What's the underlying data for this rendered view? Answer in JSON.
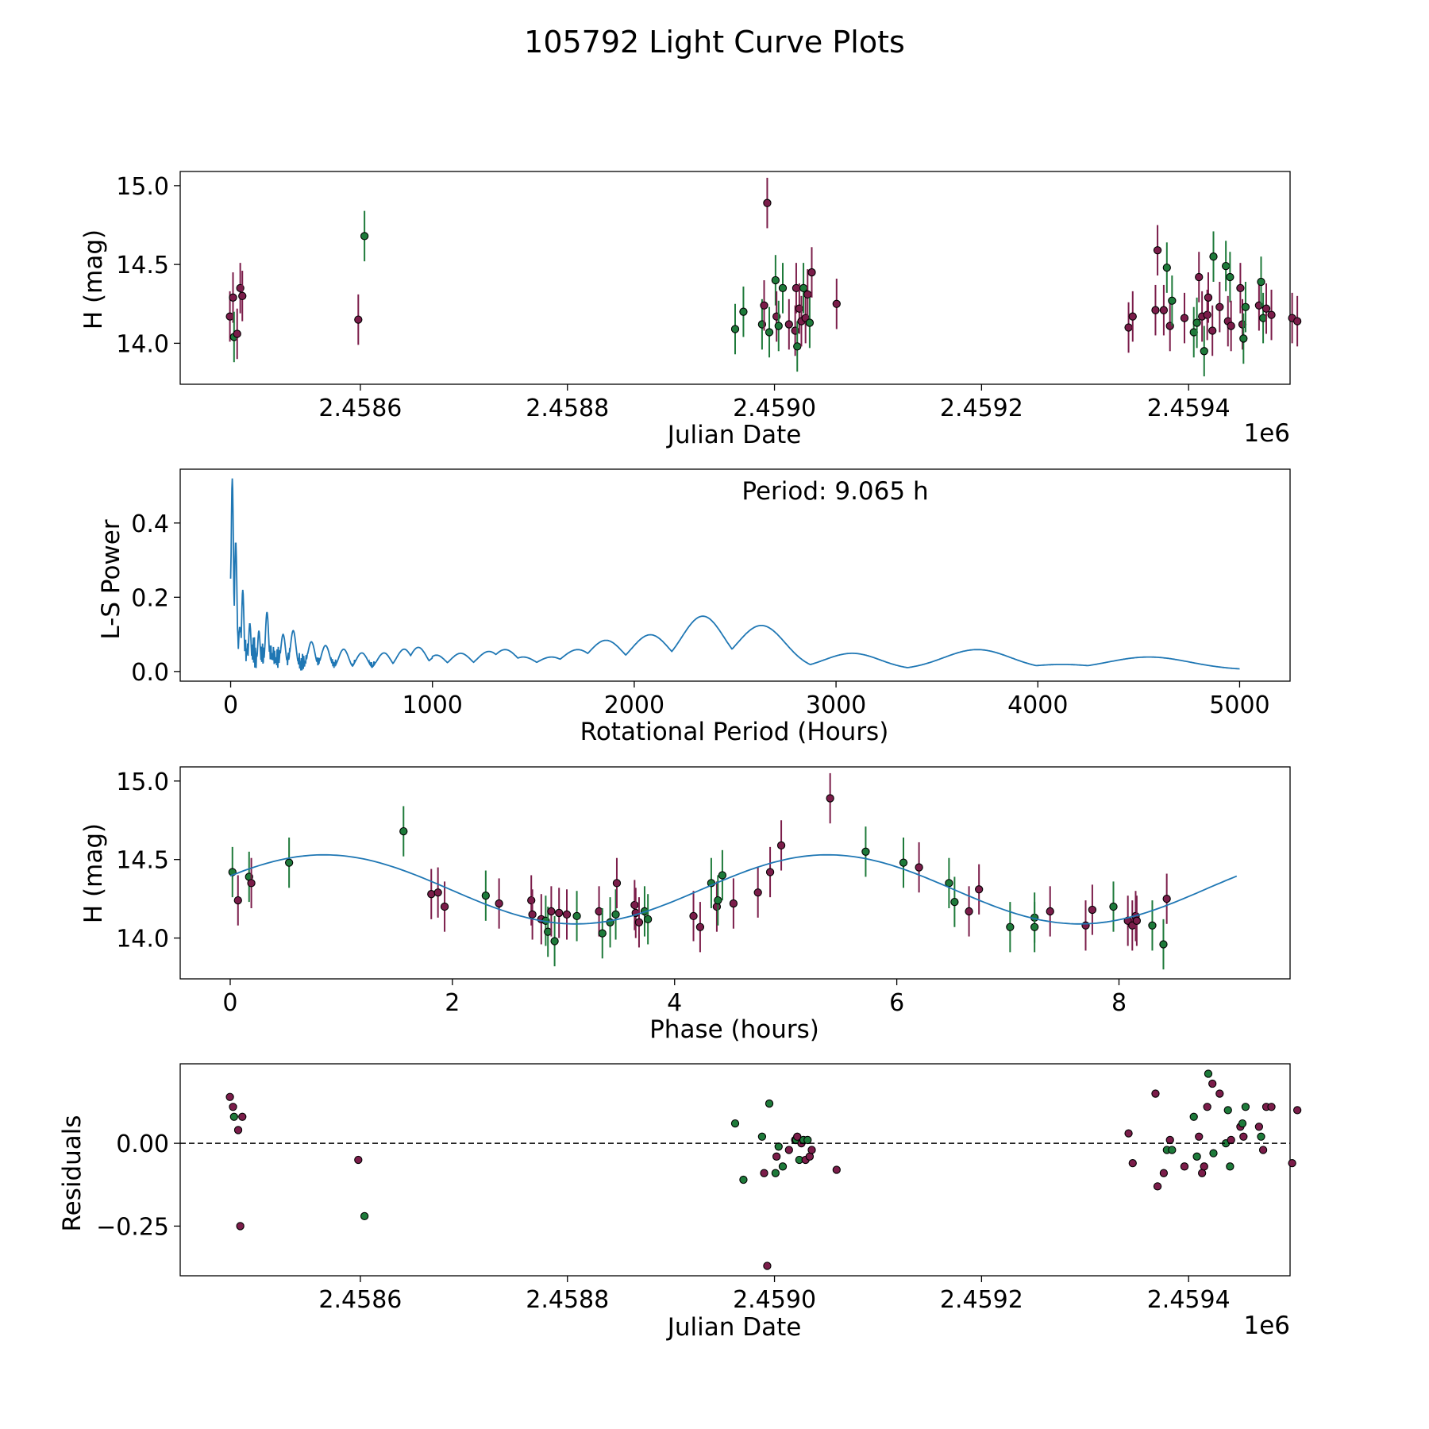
{
  "figure": {
    "title": "105792 Light Curve Plots"
  },
  "colors": {
    "red": "#7b1d4a",
    "green": "#1e7a3a",
    "line": "#1f77b4"
  },
  "chart_data": [
    {
      "type": "scatter",
      "name": "lightcurve",
      "xlabel": "Julian Date",
      "ylabel": "H (mag)",
      "offset_label": "1e6",
      "xlim": [
        2458426,
        2459498
      ],
      "ylim": [
        13.74,
        15.09
      ],
      "x_tick_values": [
        2458600,
        2458800,
        2459000,
        2459200,
        2459400
      ],
      "x_tick_labels": [
        "2.4586",
        "2.4588",
        "2.4590",
        "2.4592",
        "2.4594"
      ],
      "y_tick_values": [
        14.0,
        14.5,
        15.0
      ],
      "y_tick_labels": [
        "14.0",
        "14.5",
        "15.0"
      ],
      "error_bar": 0.16,
      "points": [
        [
          2458474,
          14.17,
          "r"
        ],
        [
          2458477,
          14.29,
          "r"
        ],
        [
          2458478,
          14.04,
          "g"
        ],
        [
          2458481,
          14.06,
          "r"
        ],
        [
          2458484,
          14.35,
          "r"
        ],
        [
          2458486,
          14.3,
          "r"
        ],
        [
          2458598,
          14.15,
          "r"
        ],
        [
          2458604,
          14.68,
          "g"
        ],
        [
          2458962,
          14.09,
          "g"
        ],
        [
          2458970,
          14.2,
          "g"
        ],
        [
          2458988,
          14.12,
          "g"
        ],
        [
          2458990,
          14.24,
          "r"
        ],
        [
          2458993,
          14.89,
          "r"
        ],
        [
          2458995,
          14.07,
          "g"
        ],
        [
          2459001,
          14.4,
          "g"
        ],
        [
          2459002,
          14.17,
          "r"
        ],
        [
          2459004,
          14.11,
          "g"
        ],
        [
          2459008,
          14.35,
          "g"
        ],
        [
          2459014,
          14.12,
          "r"
        ],
        [
          2459020,
          14.08,
          "r"
        ],
        [
          2459021,
          14.35,
          "r"
        ],
        [
          2459022,
          13.98,
          "g"
        ],
        [
          2459024,
          14.22,
          "r"
        ],
        [
          2459026,
          14.14,
          "r"
        ],
        [
          2459028,
          14.35,
          "g"
        ],
        [
          2459030,
          14.16,
          "r"
        ],
        [
          2459032,
          14.31,
          "r"
        ],
        [
          2459034,
          14.13,
          "g"
        ],
        [
          2459036,
          14.45,
          "r"
        ],
        [
          2459060,
          14.25,
          "r"
        ],
        [
          2459342,
          14.1,
          "r"
        ],
        [
          2459346,
          14.17,
          "r"
        ],
        [
          2459368,
          14.21,
          "r"
        ],
        [
          2459370,
          14.59,
          "r"
        ],
        [
          2459376,
          14.21,
          "r"
        ],
        [
          2459379,
          14.48,
          "g"
        ],
        [
          2459382,
          14.11,
          "r"
        ],
        [
          2459384,
          14.27,
          "g"
        ],
        [
          2459396,
          14.16,
          "r"
        ],
        [
          2459405,
          14.07,
          "g"
        ],
        [
          2459408,
          14.13,
          "g"
        ],
        [
          2459410,
          14.42,
          "r"
        ],
        [
          2459413,
          14.17,
          "r"
        ],
        [
          2459415,
          13.95,
          "g"
        ],
        [
          2459418,
          14.18,
          "r"
        ],
        [
          2459419,
          14.29,
          "r"
        ],
        [
          2459423,
          14.08,
          "r"
        ],
        [
          2459424,
          14.55,
          "g"
        ],
        [
          2459430,
          14.23,
          "r"
        ],
        [
          2459436,
          14.49,
          "g"
        ],
        [
          2459438,
          14.14,
          "r"
        ],
        [
          2459440,
          14.42,
          "g"
        ],
        [
          2459441,
          14.11,
          "r"
        ],
        [
          2459450,
          14.35,
          "r"
        ],
        [
          2459452,
          14.12,
          "r"
        ],
        [
          2459453,
          14.03,
          "g"
        ],
        [
          2459455,
          14.23,
          "g"
        ],
        [
          2459468,
          14.24,
          "r"
        ],
        [
          2459470,
          14.39,
          "g"
        ],
        [
          2459472,
          14.16,
          "g"
        ],
        [
          2459475,
          14.22,
          "r"
        ],
        [
          2459480,
          14.18,
          "r"
        ],
        [
          2459500,
          14.16,
          "r"
        ],
        [
          2459505,
          14.14,
          "r"
        ]
      ]
    },
    {
      "type": "line",
      "name": "periodogram",
      "xlabel": "Rotational Period (Hours)",
      "ylabel": "L-S Power",
      "annotation": "Period: 9.065 h",
      "xlim": [
        -250,
        5250
      ],
      "ylim": [
        -0.026,
        0.545
      ],
      "x_tick_values": [
        0,
        1000,
        2000,
        3000,
        4000,
        5000
      ],
      "x_tick_labels": [
        "0",
        "1000",
        "2000",
        "3000",
        "4000",
        "5000"
      ],
      "y_tick_values": [
        0.0,
        0.2,
        0.4
      ],
      "y_tick_labels": [
        "0.0",
        "0.2",
        "0.4"
      ],
      "peaks": [
        [
          0,
          0.25
        ],
        [
          8,
          0.52
        ],
        [
          25,
          0.35
        ],
        [
          45,
          0.12
        ],
        [
          60,
          0.22
        ],
        [
          95,
          0.13
        ],
        [
          140,
          0.11
        ],
        [
          180,
          0.16
        ],
        [
          260,
          0.1
        ],
        [
          310,
          0.11
        ],
        [
          400,
          0.08
        ],
        [
          470,
          0.07
        ],
        [
          560,
          0.06
        ],
        [
          650,
          0.05
        ],
        [
          760,
          0.05
        ],
        [
          860,
          0.06
        ],
        [
          930,
          0.065
        ],
        [
          1020,
          0.04
        ],
        [
          1140,
          0.045
        ],
        [
          1280,
          0.05
        ],
        [
          1360,
          0.055
        ],
        [
          1450,
          0.035
        ],
        [
          1590,
          0.035
        ],
        [
          1720,
          0.055
        ],
        [
          1860,
          0.08
        ],
        [
          2080,
          0.095
        ],
        [
          2340,
          0.145
        ],
        [
          2500,
          0.035
        ],
        [
          2630,
          0.12
        ],
        [
          2800,
          0.015
        ],
        [
          3080,
          0.045
        ],
        [
          3700,
          0.055
        ],
        [
          4120,
          0.015
        ],
        [
          4550,
          0.035
        ]
      ]
    },
    {
      "type": "scatter",
      "name": "phased",
      "xlabel": "Phase (hours)",
      "ylabel": "H (mag)",
      "xlim": [
        -0.45,
        9.54
      ],
      "ylim": [
        13.74,
        15.09
      ],
      "x_tick_values": [
        0,
        2,
        4,
        6,
        8
      ],
      "x_tick_labels": [
        "0",
        "2",
        "4",
        "6",
        "8"
      ],
      "y_tick_values": [
        14.0,
        14.5,
        15.0
      ],
      "y_tick_labels": [
        "14.0",
        "14.5",
        "15.0"
      ],
      "error_bar": 0.16,
      "model": {
        "mean": 14.31,
        "amplitude": 0.22,
        "period": 9.065,
        "x_max": 9.065
      },
      "points": [
        [
          0.02,
          14.42,
          "g"
        ],
        [
          0.07,
          14.24,
          "r"
        ],
        [
          0.17,
          14.39,
          "g"
        ],
        [
          0.19,
          14.35,
          "r"
        ],
        [
          0.53,
          14.48,
          "g"
        ],
        [
          1.56,
          14.68,
          "g"
        ],
        [
          1.81,
          14.28,
          "r"
        ],
        [
          1.87,
          14.29,
          "r"
        ],
        [
          1.93,
          14.2,
          "r"
        ],
        [
          2.3,
          14.27,
          "g"
        ],
        [
          2.42,
          14.22,
          "r"
        ],
        [
          2.71,
          14.24,
          "r"
        ],
        [
          2.72,
          14.15,
          "r"
        ],
        [
          2.8,
          14.12,
          "r"
        ],
        [
          2.84,
          14.11,
          "g"
        ],
        [
          2.86,
          14.04,
          "g"
        ],
        [
          2.89,
          14.17,
          "r"
        ],
        [
          2.92,
          13.98,
          "g"
        ],
        [
          2.96,
          14.16,
          "r"
        ],
        [
          3.03,
          14.15,
          "r"
        ],
        [
          3.12,
          14.14,
          "g"
        ],
        [
          3.32,
          14.17,
          "r"
        ],
        [
          3.35,
          14.03,
          "g"
        ],
        [
          3.42,
          14.1,
          "g"
        ],
        [
          3.47,
          14.15,
          "g"
        ],
        [
          3.48,
          14.35,
          "r"
        ],
        [
          3.64,
          14.21,
          "r"
        ],
        [
          3.65,
          14.16,
          "r"
        ],
        [
          3.68,
          14.1,
          "r"
        ],
        [
          3.73,
          14.17,
          "g"
        ],
        [
          3.76,
          14.12,
          "g"
        ],
        [
          4.17,
          14.14,
          "r"
        ],
        [
          4.23,
          14.07,
          "r"
        ],
        [
          4.33,
          14.35,
          "g"
        ],
        [
          4.38,
          14.2,
          "r"
        ],
        [
          4.39,
          14.24,
          "g"
        ],
        [
          4.43,
          14.4,
          "g"
        ],
        [
          4.53,
          14.22,
          "r"
        ],
        [
          4.75,
          14.29,
          "r"
        ],
        [
          4.86,
          14.42,
          "r"
        ],
        [
          4.96,
          14.59,
          "r"
        ],
        [
          5.4,
          14.89,
          "r"
        ],
        [
          5.72,
          14.55,
          "g"
        ],
        [
          6.06,
          14.48,
          "g"
        ],
        [
          6.2,
          14.45,
          "r"
        ],
        [
          6.47,
          14.35,
          "g"
        ],
        [
          6.52,
          14.23,
          "g"
        ],
        [
          6.65,
          14.17,
          "r"
        ],
        [
          6.74,
          14.31,
          "r"
        ],
        [
          7.02,
          14.07,
          "g"
        ],
        [
          7.24,
          14.13,
          "g"
        ],
        [
          7.24,
          14.07,
          "g"
        ],
        [
          7.38,
          14.17,
          "r"
        ],
        [
          7.7,
          14.08,
          "r"
        ],
        [
          7.76,
          14.18,
          "r"
        ],
        [
          7.95,
          14.2,
          "g"
        ],
        [
          8.08,
          14.11,
          "r"
        ],
        [
          8.12,
          14.08,
          "r"
        ],
        [
          8.15,
          14.14,
          "r"
        ],
        [
          8.16,
          14.11,
          "r"
        ],
        [
          8.3,
          14.08,
          "g"
        ],
        [
          8.4,
          13.96,
          "g"
        ],
        [
          8.43,
          14.25,
          "r"
        ]
      ]
    },
    {
      "type": "scatter",
      "name": "residuals",
      "xlabel": "Julian Date",
      "ylabel": "Residuals",
      "offset_label": "1e6",
      "xlim": [
        2458426,
        2459498
      ],
      "ylim": [
        -0.4,
        0.24
      ],
      "reference_line": 0.0,
      "x_tick_values": [
        2458600,
        2458800,
        2459000,
        2459200,
        2459400
      ],
      "x_tick_labels": [
        "2.4586",
        "2.4588",
        "2.4590",
        "2.4592",
        "2.4594"
      ],
      "y_tick_values": [
        -0.25,
        0.0
      ],
      "y_tick_labels": [
        "−0.25",
        "0.00"
      ],
      "points": [
        [
          2458474,
          0.14,
          "r"
        ],
        [
          2458477,
          0.11,
          "r"
        ],
        [
          2458478,
          0.08,
          "g"
        ],
        [
          2458482,
          0.04,
          "r"
        ],
        [
          2458484,
          -0.25,
          "r"
        ],
        [
          2458486,
          0.08,
          "r"
        ],
        [
          2458598,
          -0.05,
          "r"
        ],
        [
          2458604,
          -0.22,
          "g"
        ],
        [
          2458962,
          0.06,
          "g"
        ],
        [
          2458970,
          -0.11,
          "g"
        ],
        [
          2458988,
          0.02,
          "g"
        ],
        [
          2458990,
          -0.09,
          "r"
        ],
        [
          2458993,
          -0.37,
          "r"
        ],
        [
          2458995,
          0.12,
          "g"
        ],
        [
          2459001,
          -0.09,
          "g"
        ],
        [
          2459002,
          -0.04,
          "r"
        ],
        [
          2459004,
          -0.01,
          "g"
        ],
        [
          2459008,
          -0.07,
          "g"
        ],
        [
          2459014,
          -0.02,
          "r"
        ],
        [
          2459020,
          0.01,
          "r"
        ],
        [
          2459021,
          0.01,
          "g"
        ],
        [
          2459022,
          0.02,
          "r"
        ],
        [
          2459024,
          -0.05,
          "g"
        ],
        [
          2459026,
          0.0,
          "r"
        ],
        [
          2459028,
          0.01,
          "g"
        ],
        [
          2459030,
          -0.05,
          "r"
        ],
        [
          2459032,
          0.01,
          "g"
        ],
        [
          2459034,
          -0.04,
          "r"
        ],
        [
          2459036,
          -0.02,
          "r"
        ],
        [
          2459060,
          -0.08,
          "r"
        ],
        [
          2459342,
          0.03,
          "r"
        ],
        [
          2459346,
          -0.06,
          "r"
        ],
        [
          2459368,
          0.15,
          "r"
        ],
        [
          2459370,
          -0.13,
          "r"
        ],
        [
          2459376,
          -0.09,
          "r"
        ],
        [
          2459379,
          -0.02,
          "g"
        ],
        [
          2459382,
          0.01,
          "r"
        ],
        [
          2459384,
          -0.02,
          "g"
        ],
        [
          2459396,
          -0.07,
          "r"
        ],
        [
          2459405,
          0.08,
          "g"
        ],
        [
          2459408,
          -0.04,
          "g"
        ],
        [
          2459410,
          0.02,
          "r"
        ],
        [
          2459413,
          -0.09,
          "r"
        ],
        [
          2459415,
          -0.07,
          "r"
        ],
        [
          2459418,
          0.11,
          "r"
        ],
        [
          2459419,
          0.21,
          "g"
        ],
        [
          2459423,
          0.18,
          "r"
        ],
        [
          2459424,
          -0.03,
          "g"
        ],
        [
          2459430,
          0.15,
          "r"
        ],
        [
          2459436,
          0.0,
          "g"
        ],
        [
          2459438,
          0.1,
          "g"
        ],
        [
          2459440,
          -0.07,
          "g"
        ],
        [
          2459441,
          0.01,
          "r"
        ],
        [
          2459450,
          0.05,
          "r"
        ],
        [
          2459452,
          0.06,
          "g"
        ],
        [
          2459453,
          0.02,
          "r"
        ],
        [
          2459455,
          0.11,
          "g"
        ],
        [
          2459468,
          0.05,
          "r"
        ],
        [
          2459470,
          0.02,
          "g"
        ],
        [
          2459472,
          -0.02,
          "r"
        ],
        [
          2459475,
          0.11,
          "r"
        ],
        [
          2459480,
          0.11,
          "r"
        ],
        [
          2459500,
          -0.06,
          "r"
        ],
        [
          2459505,
          0.1,
          "r"
        ]
      ]
    }
  ]
}
